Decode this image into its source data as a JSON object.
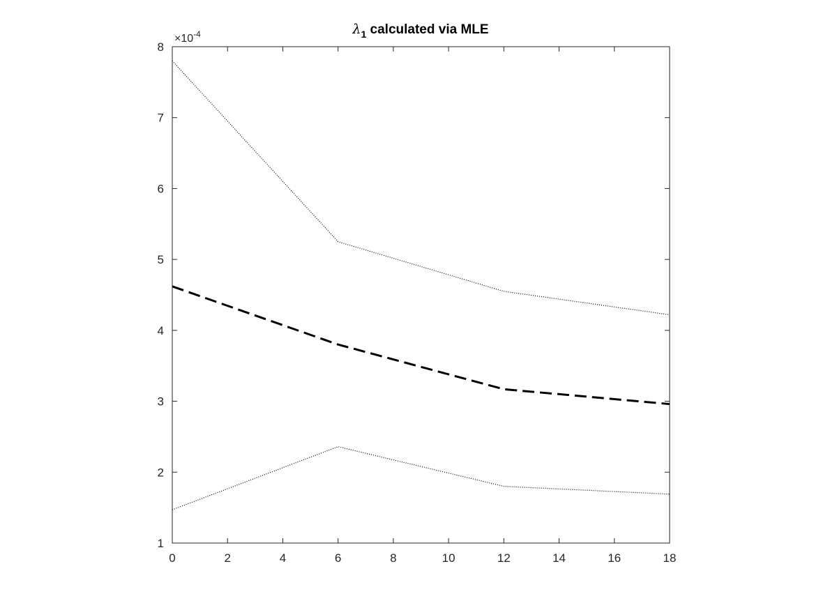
{
  "chart_data": {
    "type": "line",
    "title": {
      "symbol": "λ",
      "subscript": "1",
      "rest": " calculated via MLE"
    },
    "axis_multiplier": {
      "base": "×10",
      "exponent": "-4"
    },
    "xlabel": "",
    "ylabel": "",
    "xlim": [
      0,
      18
    ],
    "ylim": [
      1,
      8
    ],
    "xticks": [
      0,
      2,
      4,
      6,
      8,
      10,
      12,
      14,
      16,
      18
    ],
    "yticks": [
      1,
      2,
      3,
      4,
      5,
      6,
      7,
      8
    ],
    "xtick_labels": [
      "0",
      "2",
      "4",
      "6",
      "8",
      "10",
      "12",
      "14",
      "16",
      "18"
    ],
    "ytick_labels": [
      "1",
      "2",
      "3",
      "4",
      "5",
      "6",
      "7",
      "8"
    ],
    "grid": false,
    "series": [
      {
        "style": "dashed",
        "x": [
          0,
          6,
          12,
          18
        ],
        "y": [
          4.62,
          3.8,
          3.17,
          2.96
        ]
      },
      {
        "style": "dotted",
        "x": [
          0,
          6,
          12,
          18
        ],
        "y": [
          7.8,
          5.25,
          4.55,
          4.22
        ]
      },
      {
        "style": "dotted",
        "x": [
          0,
          6,
          12,
          18
        ],
        "y": [
          1.47,
          2.36,
          1.8,
          1.69
        ]
      }
    ],
    "colors": {
      "line": "#000000",
      "axis": "#262626"
    }
  }
}
